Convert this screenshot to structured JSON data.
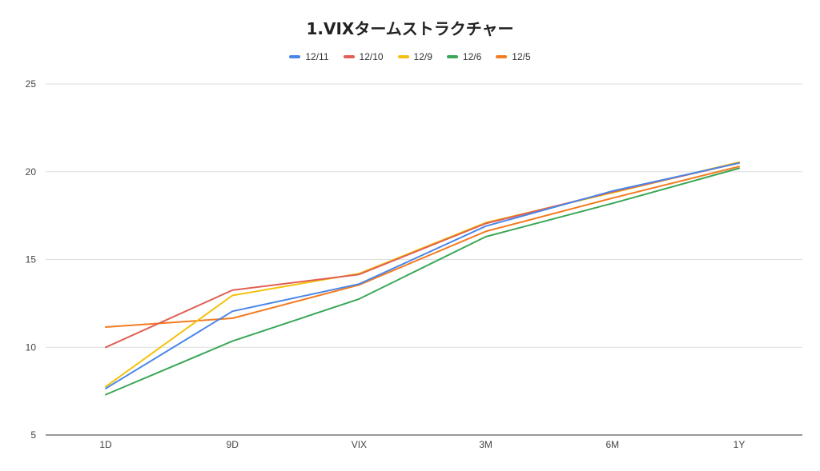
{
  "chart_data": {
    "type": "line",
    "title": "1.VIXタームストラクチャー",
    "xlabel": "",
    "ylabel": "",
    "categories": [
      "1D",
      "9D",
      "VIX",
      "3M",
      "6M",
      "1Y"
    ],
    "ylim": [
      5,
      25
    ],
    "yticks": [
      5,
      10,
      15,
      20,
      25
    ],
    "grid": true,
    "legend_position": "top-center",
    "series": [
      {
        "name": "12/11",
        "color": "#4a86e8",
        "values": [
          7.65,
          12.05,
          13.6,
          16.9,
          18.9,
          20.5
        ]
      },
      {
        "name": "12/10",
        "color": "#e06055",
        "values": [
          10.0,
          13.25,
          14.15,
          17.05,
          18.85,
          20.5
        ]
      },
      {
        "name": "12/9",
        "color": "#f4c20d",
        "values": [
          7.75,
          12.95,
          14.2,
          17.1,
          18.8,
          20.55
        ]
      },
      {
        "name": "12/6",
        "color": "#3aa757",
        "values": [
          7.3,
          10.35,
          12.75,
          16.3,
          18.2,
          20.2
        ]
      },
      {
        "name": "12/5",
        "color": "#f47b20",
        "values": [
          11.15,
          11.65,
          13.55,
          16.6,
          18.5,
          20.3
        ]
      }
    ]
  }
}
